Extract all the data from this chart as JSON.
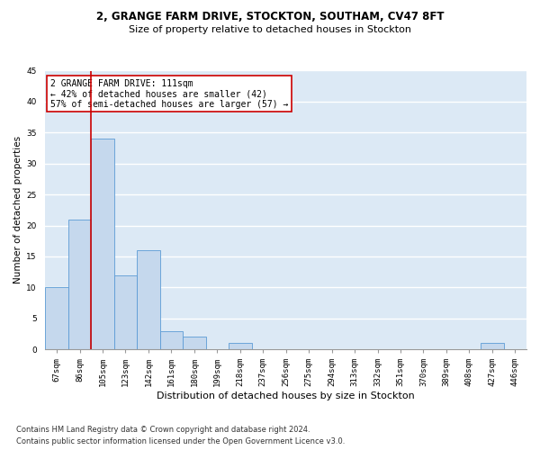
{
  "title1": "2, GRANGE FARM DRIVE, STOCKTON, SOUTHAM, CV47 8FT",
  "title2": "Size of property relative to detached houses in Stockton",
  "xlabel": "Distribution of detached houses by size in Stockton",
  "ylabel": "Number of detached properties",
  "footnote1": "Contains HM Land Registry data © Crown copyright and database right 2024.",
  "footnote2": "Contains public sector information licensed under the Open Government Licence v3.0.",
  "categories": [
    "67sqm",
    "86sqm",
    "105sqm",
    "123sqm",
    "142sqm",
    "161sqm",
    "180sqm",
    "199sqm",
    "218sqm",
    "237sqm",
    "256sqm",
    "275sqm",
    "294sqm",
    "313sqm",
    "332sqm",
    "351sqm",
    "370sqm",
    "389sqm",
    "408sqm",
    "427sqm",
    "446sqm"
  ],
  "values": [
    10,
    21,
    34,
    12,
    16,
    3,
    2,
    0,
    1,
    0,
    0,
    0,
    0,
    0,
    0,
    0,
    0,
    0,
    0,
    1,
    0
  ],
  "bar_color": "#c5d8ed",
  "bar_edge_color": "#5b9bd5",
  "background_color": "#dce9f5",
  "grid_color": "#ffffff",
  "annotation_box_text": "2 GRANGE FARM DRIVE: 111sqm\n← 42% of detached houses are smaller (42)\n57% of semi-detached houses are larger (57) →",
  "annotation_box_color": "#cc0000",
  "property_line_color": "#cc0000",
  "ylim": [
    0,
    45
  ],
  "yticks": [
    0,
    5,
    10,
    15,
    20,
    25,
    30,
    35,
    40,
    45
  ],
  "title1_fontsize": 8.5,
  "title2_fontsize": 8.0,
  "ylabel_fontsize": 7.5,
  "xlabel_fontsize": 8.0,
  "tick_fontsize": 6.5,
  "annotation_fontsize": 7.0,
  "footnote_fontsize": 6.0
}
